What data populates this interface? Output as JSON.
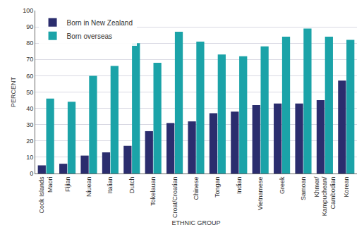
{
  "chart_data": {
    "type": "bar",
    "x_label": "ETHNIC GROUP",
    "y_label": "PERCENT",
    "categories": [
      "Cook Islands\nMaori",
      "Fijian",
      "Niuean",
      "Italian",
      "Dutch",
      "Tokelauan",
      "Croat/Croatian",
      "Chinese",
      "Tongan",
      "Indian",
      "Vietnamese",
      "Greek",
      "Samoan",
      "Khmer/\nKampuchean/\nCambodian",
      "Korean"
    ],
    "series": [
      {
        "name": "Born in New Zealand",
        "color": "#2b2d6e",
        "values": [
          5,
          6,
          11,
          13,
          17,
          26,
          31,
          32,
          37,
          38,
          42,
          43,
          43,
          45,
          57
        ]
      },
      {
        "name": "Born overseas",
        "color": "#1ba3a8",
        "values": [
          46,
          44,
          60,
          66,
          80,
          68,
          87,
          81,
          73,
          72,
          78,
          84,
          89,
          84,
          82
        ]
      }
    ],
    "ylim": [
      0,
      100
    ],
    "yticks": [
      0,
      10,
      20,
      30,
      40,
      50,
      60,
      70,
      80,
      90,
      100
    ],
    "grid": true,
    "legend": "top-left"
  }
}
